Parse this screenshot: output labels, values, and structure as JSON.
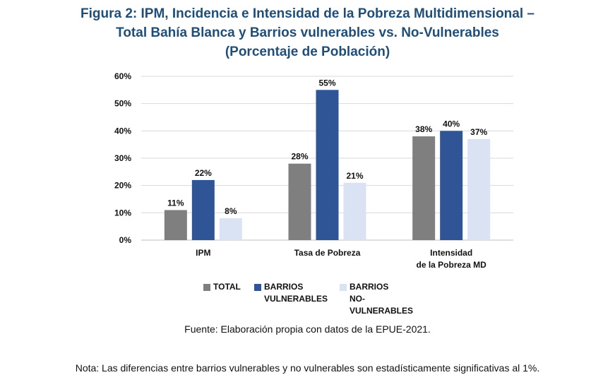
{
  "title": {
    "line1": "Figura 2: IPM, Incidencia e Intensidad de la Pobreza Multidimensional –",
    "line2": "Total Bahía Blanca y Barrios vulnerables vs. No-Vulnerables",
    "line3": "(Porcentaje de Población)"
  },
  "chart_data": {
    "type": "bar",
    "categories": [
      "IPM",
      "Tasa de Pobreza",
      "Intensidad\nde la Pobreza MD"
    ],
    "series": [
      {
        "name": "TOTAL",
        "values": [
          11,
          28,
          38
        ],
        "color": "#7f7f7f"
      },
      {
        "name": "BARRIOS\nVULNERABLES",
        "values": [
          22,
          55,
          40
        ],
        "color": "#2f5597"
      },
      {
        "name": "BARRIOS\nNO-VULNERABLES",
        "values": [
          8,
          21,
          37
        ],
        "color": "#dae3f3"
      }
    ],
    "ylim": [
      0,
      60
    ],
    "yticks": [
      "0%",
      "10%",
      "20%",
      "30%",
      "40%",
      "50%",
      "60%"
    ],
    "data_labels": [
      [
        "11%",
        "28%",
        "38%"
      ],
      [
        "22%",
        "55%",
        "40%"
      ],
      [
        "8%",
        "21%",
        "37%"
      ]
    ],
    "grid": true,
    "legend_position": "bottom"
  },
  "source": "Fuente: Elaboración propia con datos de la EPUE-2021.",
  "note": "Nota: Las diferencias entre barrios vulnerables y no vulnerables son estadísticamente significativas al 1%."
}
